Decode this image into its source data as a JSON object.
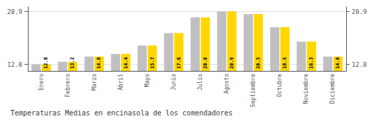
{
  "chart_data": {
    "type": "bar",
    "title": "Temperaturas Medias en encinasola de los comendadores",
    "categories": [
      "Enero",
      "Febrero",
      "Marzo",
      "Abril",
      "Mayo",
      "Junio",
      "Julio",
      "Agosto",
      "Septiembre",
      "Octubre",
      "Noviembre",
      "Diciembre"
    ],
    "series": [
      {
        "color": "#C0C0C0",
        "values": [
          12.8,
          13.2,
          14.0,
          14.4,
          15.7,
          17.6,
          20.0,
          20.9,
          20.5,
          18.5,
          16.3,
          14.0
        ]
      },
      {
        "color": "#FFD700",
        "values": [
          12.8,
          13.2,
          14.0,
          14.4,
          15.7,
          17.6,
          20.0,
          20.9,
          20.5,
          18.5,
          16.3,
          14.0
        ],
        "data_labels": true,
        "value_labels": [
          "12.8",
          "13.2",
          "14.0",
          "14.4",
          "15.7",
          "17.6",
          "20.0",
          "20.9",
          "20.5",
          "18.5",
          "16.3",
          "14.0"
        ]
      }
    ],
    "ylim": [
      11.8,
      21.6
    ],
    "yticks": [
      12.8,
      20.9
    ],
    "y2lim": [
      11.8,
      21.6
    ],
    "y2ticks": [
      12.8,
      20.9
    ],
    "grid": true
  }
}
